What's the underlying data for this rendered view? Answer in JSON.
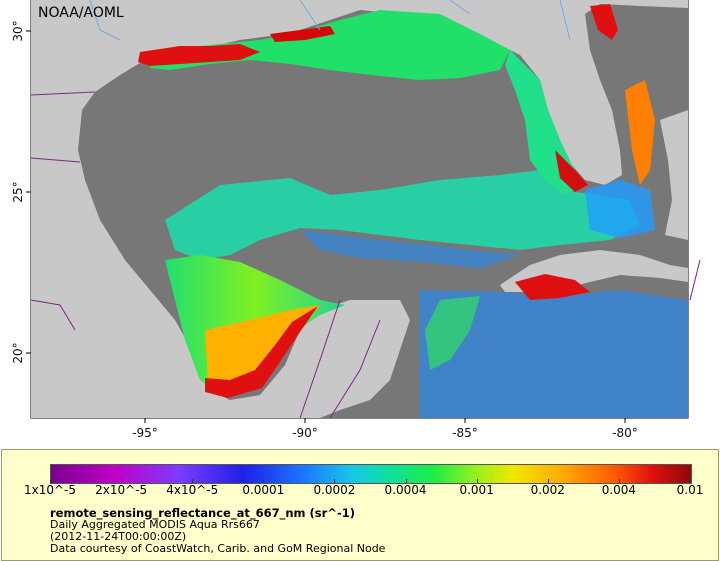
{
  "credit": "NOAA/AOML",
  "map": {
    "x_ticks": [
      "-95°",
      "-90°",
      "-85°",
      "-80°"
    ],
    "y_ticks": [
      "30°",
      "25°",
      "20°"
    ],
    "colors": {
      "land": "#c8c8c8",
      "nodata": "#777777",
      "border": "#7a2a7a",
      "river": "#7aa6d8"
    }
  },
  "legend": {
    "ticks": [
      "1x10^-5",
      "2x10^-5",
      "4x10^-5",
      "0.0001",
      "0.0002",
      "0.0004",
      "0.001",
      "0.002",
      "0.004",
      "0.01"
    ],
    "variable": "remote_sensing_reflectance_at_667_nm (sr^-1)",
    "description": "Daily Aggregated MODIS Aqua Rrs667",
    "date": "(2012-11-24T00:00:00Z)",
    "source": "Data courtesy of CoastWatch, Carib. and GoM Regional Node"
  }
}
